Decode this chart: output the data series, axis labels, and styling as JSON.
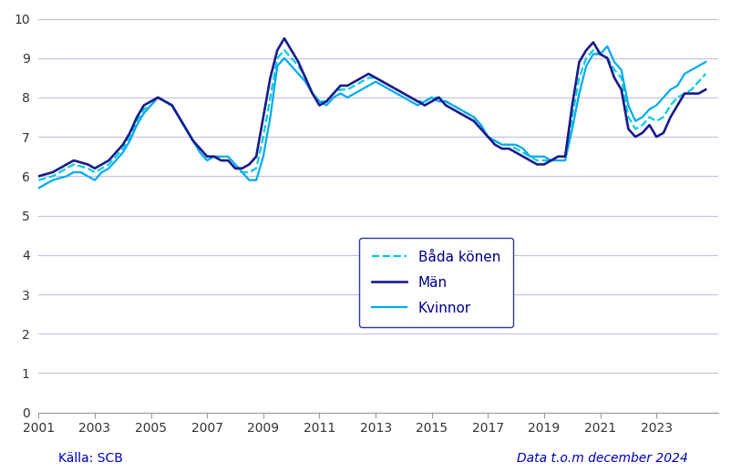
{
  "ylim": [
    0,
    10
  ],
  "yticks": [
    0,
    1,
    2,
    3,
    4,
    5,
    6,
    7,
    8,
    9,
    10
  ],
  "xlim_start": 2001.0,
  "xlim_end": 2025.2,
  "xtick_labels": [
    "2001",
    "2003",
    "2005",
    "2007",
    "2009",
    "2011",
    "2013",
    "2015",
    "2017",
    "2019",
    "2021",
    "2023"
  ],
  "xtick_positions": [
    2001,
    2003,
    2005,
    2007,
    2009,
    2011,
    2013,
    2015,
    2017,
    2019,
    2021,
    2023
  ],
  "color_bada": "#00CCDD",
  "color_man": "#1A1A8C",
  "color_kvinna": "#00AAEE",
  "background_color": "#FFFFFF",
  "grid_color": "#C0C0E0",
  "source_text": "Källa: SCB",
  "source_color": "#0000BB",
  "data_text": "Data t.o.m december 2024",
  "data_color": "#0000BB",
  "legend_labels": [
    "Båda könen",
    "Män",
    "Kvinnor"
  ],
  "t": [
    2001.0,
    2001.25,
    2001.5,
    2001.75,
    2002.0,
    2002.25,
    2002.5,
    2002.75,
    2003.0,
    2003.25,
    2003.5,
    2003.75,
    2004.0,
    2004.25,
    2004.5,
    2004.75,
    2005.0,
    2005.25,
    2005.5,
    2005.75,
    2006.0,
    2006.25,
    2006.5,
    2006.75,
    2007.0,
    2007.25,
    2007.5,
    2007.75,
    2008.0,
    2008.25,
    2008.5,
    2008.75,
    2009.0,
    2009.25,
    2009.5,
    2009.75,
    2010.0,
    2010.25,
    2010.5,
    2010.75,
    2011.0,
    2011.25,
    2011.5,
    2011.75,
    2012.0,
    2012.25,
    2012.5,
    2012.75,
    2013.0,
    2013.25,
    2013.5,
    2013.75,
    2014.0,
    2014.25,
    2014.5,
    2014.75,
    2015.0,
    2015.25,
    2015.5,
    2015.75,
    2016.0,
    2016.25,
    2016.5,
    2016.75,
    2017.0,
    2017.25,
    2017.5,
    2017.75,
    2018.0,
    2018.25,
    2018.5,
    2018.75,
    2019.0,
    2019.25,
    2019.5,
    2019.75,
    2020.0,
    2020.25,
    2020.5,
    2020.75,
    2021.0,
    2021.25,
    2021.5,
    2021.75,
    2022.0,
    2022.25,
    2022.5,
    2022.75,
    2023.0,
    2023.25,
    2023.5,
    2023.75,
    2024.0,
    2024.25,
    2024.5,
    2024.75
  ],
  "bada": [
    5.9,
    5.95,
    6.0,
    6.1,
    6.2,
    6.3,
    6.25,
    6.2,
    6.1,
    6.2,
    6.3,
    6.5,
    6.7,
    7.0,
    7.4,
    7.7,
    7.8,
    8.0,
    7.9,
    7.8,
    7.5,
    7.2,
    6.9,
    6.7,
    6.5,
    6.5,
    6.4,
    6.4,
    6.2,
    6.1,
    6.1,
    6.2,
    7.0,
    8.0,
    9.0,
    9.2,
    9.0,
    8.8,
    8.5,
    8.1,
    7.9,
    7.9,
    8.1,
    8.2,
    8.2,
    8.3,
    8.4,
    8.5,
    8.5,
    8.4,
    8.3,
    8.2,
    8.1,
    8.0,
    7.9,
    7.9,
    8.0,
    8.0,
    7.9,
    7.8,
    7.7,
    7.6,
    7.5,
    7.3,
    7.0,
    6.9,
    6.8,
    6.8,
    6.7,
    6.6,
    6.5,
    6.4,
    6.4,
    6.4,
    6.5,
    6.5,
    7.5,
    8.5,
    9.0,
    9.2,
    9.1,
    9.0,
    8.7,
    8.5,
    7.5,
    7.2,
    7.3,
    7.5,
    7.4,
    7.5,
    7.8,
    8.0,
    8.1,
    8.2,
    8.4,
    8.6
  ],
  "man": [
    6.0,
    6.05,
    6.1,
    6.2,
    6.3,
    6.4,
    6.35,
    6.3,
    6.2,
    6.3,
    6.4,
    6.6,
    6.8,
    7.1,
    7.5,
    7.8,
    7.9,
    8.0,
    7.9,
    7.8,
    7.5,
    7.2,
    6.9,
    6.7,
    6.5,
    6.5,
    6.4,
    6.4,
    6.2,
    6.2,
    6.3,
    6.5,
    7.5,
    8.5,
    9.2,
    9.5,
    9.2,
    8.9,
    8.5,
    8.1,
    7.8,
    7.9,
    8.1,
    8.3,
    8.3,
    8.4,
    8.5,
    8.6,
    8.5,
    8.4,
    8.3,
    8.2,
    8.1,
    8.0,
    7.9,
    7.8,
    7.9,
    8.0,
    7.8,
    7.7,
    7.6,
    7.5,
    7.4,
    7.2,
    7.0,
    6.8,
    6.7,
    6.7,
    6.6,
    6.5,
    6.4,
    6.3,
    6.3,
    6.4,
    6.5,
    6.5,
    7.8,
    8.9,
    9.2,
    9.4,
    9.1,
    9.0,
    8.5,
    8.2,
    7.2,
    7.0,
    7.1,
    7.3,
    7.0,
    7.1,
    7.5,
    7.8,
    8.1,
    8.1,
    8.1,
    8.2
  ],
  "kvinna": [
    5.7,
    5.8,
    5.9,
    5.95,
    6.0,
    6.1,
    6.1,
    6.0,
    5.9,
    6.1,
    6.2,
    6.4,
    6.6,
    6.9,
    7.3,
    7.6,
    7.8,
    8.0,
    7.9,
    7.8,
    7.5,
    7.2,
    6.9,
    6.6,
    6.4,
    6.5,
    6.5,
    6.5,
    6.3,
    6.1,
    5.9,
    5.9,
    6.5,
    7.5,
    8.8,
    9.0,
    8.8,
    8.6,
    8.4,
    8.1,
    7.9,
    7.8,
    8.0,
    8.1,
    8.0,
    8.1,
    8.2,
    8.3,
    8.4,
    8.3,
    8.2,
    8.1,
    8.0,
    7.9,
    7.8,
    7.9,
    8.0,
    7.9,
    7.9,
    7.8,
    7.7,
    7.6,
    7.5,
    7.3,
    7.0,
    6.9,
    6.8,
    6.8,
    6.8,
    6.7,
    6.5,
    6.5,
    6.5,
    6.4,
    6.4,
    6.4,
    7.2,
    8.1,
    8.8,
    9.1,
    9.1,
    9.3,
    8.9,
    8.7,
    7.8,
    7.4,
    7.5,
    7.7,
    7.8,
    8.0,
    8.2,
    8.3,
    8.6,
    8.7,
    8.8,
    8.9
  ]
}
